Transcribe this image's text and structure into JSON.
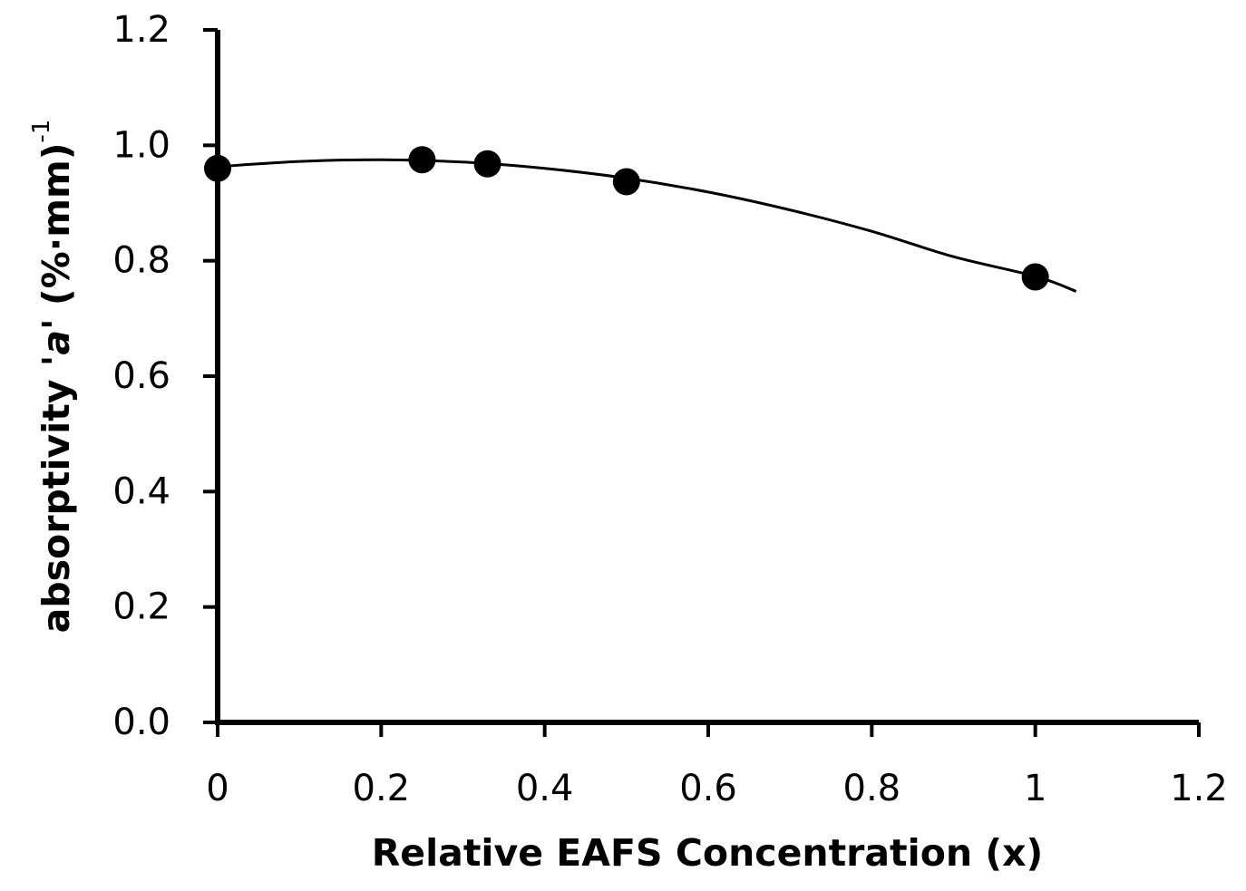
{
  "chart_data": {
    "type": "scatter",
    "title": "",
    "xlabel": "Relative EAFS Concentration (x)",
    "ylabel": {
      "prefix": "absorptivity '",
      "symbol": "a",
      "suffix": "' (%·mm)",
      "exponent": "-1"
    },
    "xlim": [
      0,
      1.2
    ],
    "ylim": [
      0.0,
      1.2
    ],
    "x_ticks": [
      "0",
      "0.2",
      "0.4",
      "0.6",
      "0.8",
      "1",
      "1.2"
    ],
    "y_ticks": [
      "0.0",
      "0.2",
      "0.4",
      "0.6",
      "0.8",
      "1.0",
      "1.2"
    ],
    "grid": false,
    "legend": "none",
    "series": [
      {
        "points": [
          {
            "x": 0,
            "y": 0.96
          },
          {
            "x": 0.25,
            "y": 0.975
          },
          {
            "x": 0.33,
            "y": 0.968
          },
          {
            "x": 0.5,
            "y": 0.937
          },
          {
            "x": 1,
            "y": 0.772
          }
        ],
        "color": "#000000",
        "marker": "circle"
      }
    ],
    "trendline": {
      "type": "polynomial",
      "x_range": [
        0,
        1.05
      ],
      "points": [
        {
          "x": 0,
          "y": 0.963
        },
        {
          "x": 0.1,
          "y": 0.972
        },
        {
          "x": 0.2,
          "y": 0.975
        },
        {
          "x": 0.3,
          "y": 0.971
        },
        {
          "x": 0.4,
          "y": 0.96
        },
        {
          "x": 0.5,
          "y": 0.943
        },
        {
          "x": 0.6,
          "y": 0.919
        },
        {
          "x": 0.7,
          "y": 0.888
        },
        {
          "x": 0.8,
          "y": 0.851
        },
        {
          "x": 0.9,
          "y": 0.807
        },
        {
          "x": 1.0,
          "y": 0.773
        },
        {
          "x": 1.05,
          "y": 0.747
        }
      ],
      "color": "#000000"
    }
  }
}
